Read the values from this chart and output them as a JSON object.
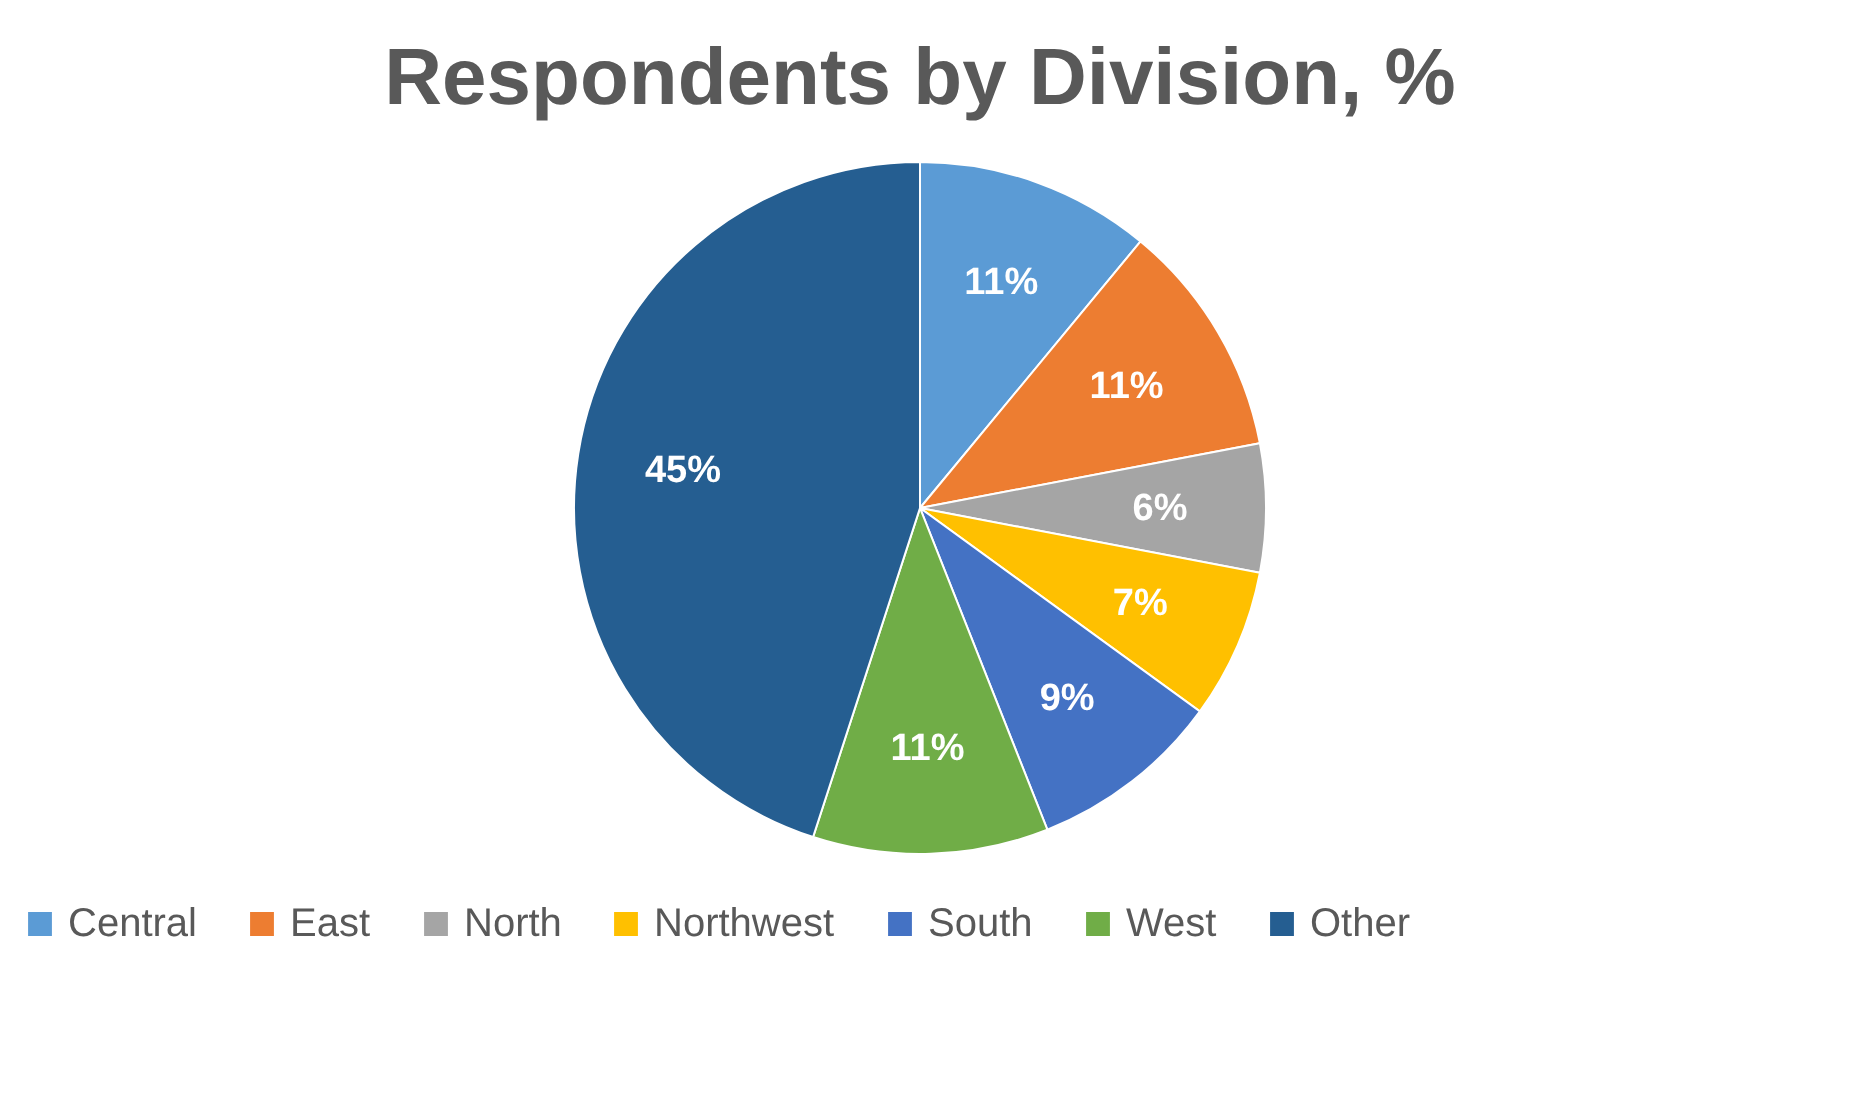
{
  "chart_data": {
    "type": "pie",
    "title": "Respondents by Division, %",
    "categories": [
      "Central",
      "East",
      "North",
      "Northwest",
      "South",
      "West",
      "Other"
    ],
    "values": [
      11,
      11,
      6,
      7,
      9,
      11,
      45
    ],
    "colors": [
      "#5b9bd5",
      "#ed7d31",
      "#a5a5a5",
      "#ffc000",
      "#4472c4",
      "#70ad47",
      "#255e91"
    ],
    "value_labels": [
      "11%",
      "11%",
      "6%",
      "7%",
      "9%",
      "11%",
      "45%"
    ],
    "legend": "bottom"
  }
}
